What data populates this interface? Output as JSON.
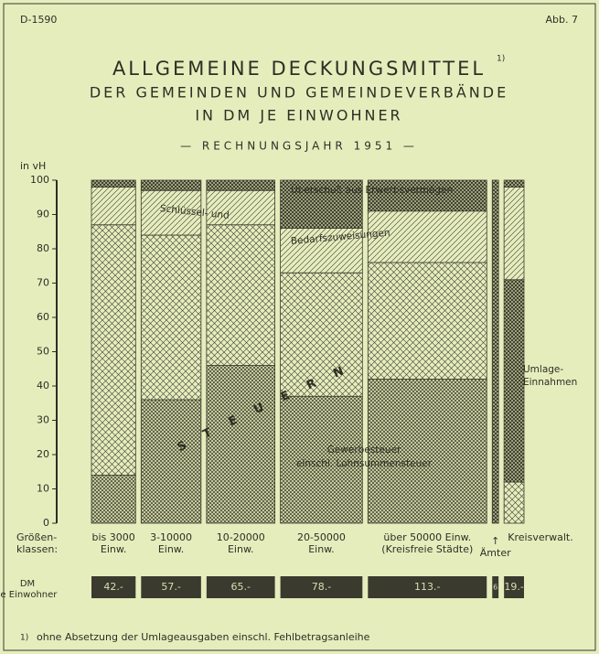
{
  "header": {
    "code": "D-1590",
    "figure": "Abb. 7"
  },
  "chart_data": {
    "type": "stacked-bar-variable-width",
    "title": [
      "ALLGEMEINE DECKUNGSMITTEL",
      "DER GEMEINDEN UND GEMEINDEVERBÄNDE",
      "IN DM JE EINWOHNER"
    ],
    "footnote_mark": "1)",
    "subtitle": "— RECHNUNGSJAHR 1951 —",
    "y_axis_label": "in vH",
    "x_axis_label": [
      "Größen-",
      "klassen:"
    ],
    "width_label": [
      "DM",
      "je Einwohner"
    ],
    "categories": [
      [
        "bis 3000",
        "Einw."
      ],
      [
        "3-10000",
        "Einw."
      ],
      [
        "10-20000",
        "Einw."
      ],
      [
        "20-50000",
        "Einw."
      ],
      [
        "über 50000 Einw.",
        "(Kreisfreie Städte)"
      ],
      [
        "↑",
        "Ämter"
      ],
      [
        "Kreisverwalt."
      ]
    ],
    "widths": [
      42,
      57,
      65,
      78,
      113,
      6,
      19
    ],
    "width_value_labels": [
      "42.-",
      "57.-",
      "65.-",
      "78.-",
      "113.-",
      "6",
      "19.-"
    ],
    "series": [
      {
        "name": [
          "Gewerbesteuer",
          "einschl. Lohnsummensteuer"
        ],
        "color": "#3a3a2e",
        "hatch": "cross-dense",
        "values": [
          14,
          36,
          46,
          37,
          42,
          0,
          0
        ]
      },
      {
        "name": [
          "STEUERN"
        ],
        "color": "#3a3a2e",
        "hatch": "cross",
        "values": [
          73,
          48,
          41,
          36,
          34,
          0,
          12
        ]
      },
      {
        "name": [
          "Umlage-",
          "Einnahmen"
        ],
        "color": "#3a3a2e",
        "hatch": "cross-dark",
        "values": [
          0,
          0,
          0,
          0,
          0,
          100,
          59
        ]
      },
      {
        "name": [
          "Schlüssel- und",
          "Bedarfszuweisungen"
        ],
        "color": "#3a3a2e",
        "hatch": "diagonal",
        "values": [
          11,
          13,
          10,
          13,
          15,
          0,
          27
        ]
      },
      {
        "name": [
          "Überschuß aus Erwerbsvermögen"
        ],
        "color": "#3a3a2e",
        "hatch": "cross-dark",
        "values": [
          2,
          3,
          3,
          14,
          9,
          0,
          2
        ]
      }
    ],
    "ylim": [
      0,
      100
    ],
    "yticks": [
      0,
      10,
      20,
      30,
      40,
      50,
      60,
      70,
      80,
      90,
      100
    ],
    "footnote": "ohne Absetzung der Umlageausgaben einschl. Fehlbetragsanleihe"
  }
}
